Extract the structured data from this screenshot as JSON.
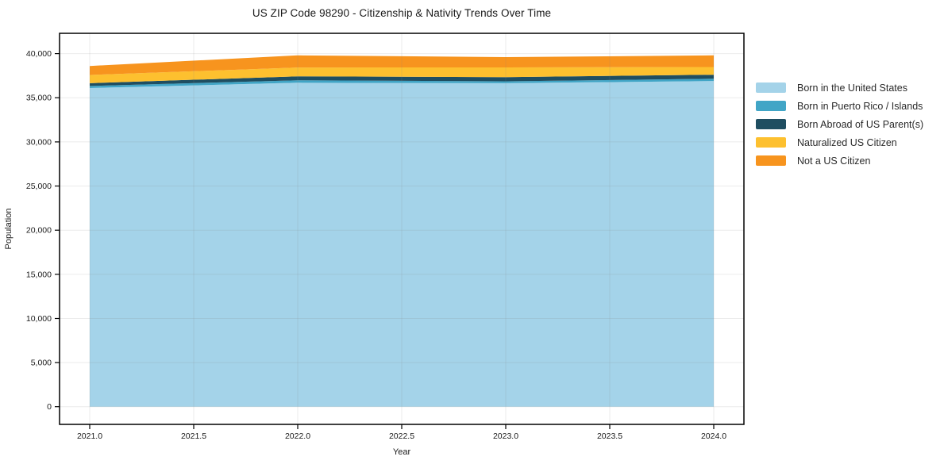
{
  "chart_data": {
    "type": "area",
    "stacked": true,
    "title": "US ZIP Code 98290 - Citizenship & Nativity Trends Over Time",
    "xlabel": "Year",
    "ylabel": "Population",
    "x": [
      2021,
      2022,
      2023,
      2024
    ],
    "series": [
      {
        "name": "Born in the United States",
        "color": "#A4D3E9",
        "values": [
          36100,
          36700,
          36650,
          36900
        ]
      },
      {
        "name": "Born in Puerto Rico / Islands",
        "color": "#41A5C6",
        "values": [
          230,
          280,
          210,
          250
        ]
      },
      {
        "name": "Born Abroad of US Parent(s)",
        "color": "#1F4E61",
        "values": [
          320,
          450,
          480,
          460
        ]
      },
      {
        "name": "Naturalized US Citizen",
        "color": "#FDC02F",
        "values": [
          930,
          1000,
          1100,
          870
        ]
      },
      {
        "name": "Not a US Citizen",
        "color": "#F7941E",
        "values": [
          1020,
          1370,
          1160,
          1320
        ]
      }
    ],
    "totals": [
      38600,
      39800,
      39600,
      39800
    ],
    "xticks": [
      2021.0,
      2021.5,
      2022.0,
      2022.5,
      2023.0,
      2023.5,
      2024.0
    ],
    "xtick_labels": [
      "2021.0",
      "2021.5",
      "2022.0",
      "2022.5",
      "2023.0",
      "2023.5",
      "2024.0"
    ],
    "yticks": [
      0,
      5000,
      10000,
      15000,
      20000,
      25000,
      30000,
      35000,
      40000
    ],
    "ytick_labels": [
      "0",
      "5,000",
      "10,000",
      "15,000",
      "20,000",
      "25,000",
      "30,000",
      "35,000",
      "40,000"
    ],
    "xlim": [
      2020.855,
      2024.145
    ],
    "ylim": [
      -2000,
      42300
    ],
    "grid": true,
    "legend_position": "right",
    "frame_color": "#000000",
    "grid_color_rgba": "rgba(130,130,130,0.16)",
    "text_color": "#1a1a1a"
  }
}
